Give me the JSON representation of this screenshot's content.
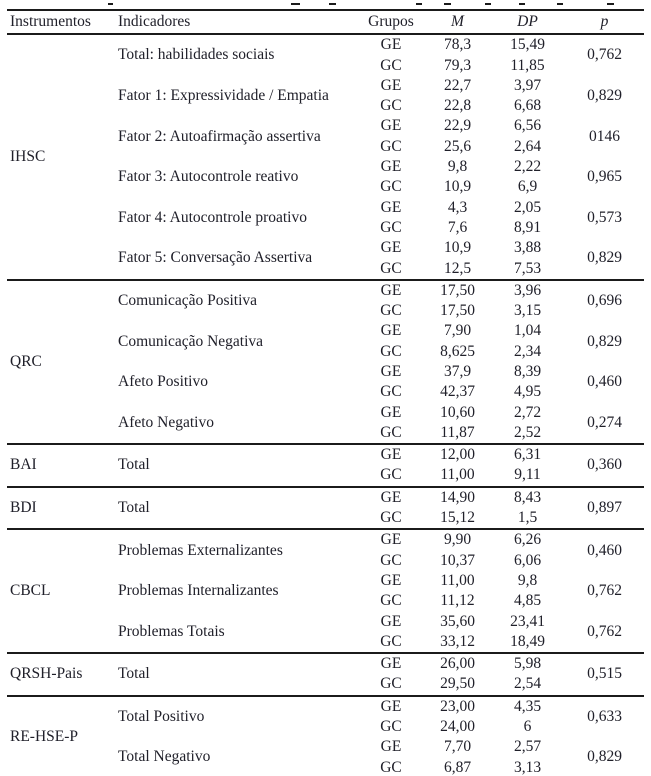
{
  "page": {
    "background": "#ffffff",
    "text_color": "#20202a",
    "rule_color": "#1b1b1b"
  },
  "table": {
    "headers": {
      "instrumentos": "Instrumentos",
      "indicadores": "Indicadores",
      "grupos": "Grupos",
      "m": "M",
      "dp": "DP",
      "p": "p"
    },
    "sections": [
      {
        "instrument": "IHSC",
        "indicators": [
          {
            "label": "Total: habilidades sociais",
            "groups": [
              {
                "group": "GE",
                "m": "78,3",
                "dp": "15,49"
              },
              {
                "group": "GC",
                "m": "79,3",
                "dp": "11,85"
              }
            ],
            "p": "0,762"
          },
          {
            "label": "Fator 1: Expressividade / Empatia",
            "groups": [
              {
                "group": "GE",
                "m": "22,7",
                "dp": "3,97"
              },
              {
                "group": "GC",
                "m": "22,8",
                "dp": "6,68"
              }
            ],
            "p": "0,829"
          },
          {
            "label": "Fator 2: Autoafirmação assertiva",
            "groups": [
              {
                "group": "GE",
                "m": "22,9",
                "dp": "6,56"
              },
              {
                "group": "GC",
                "m": "25,6",
                "dp": "2,64"
              }
            ],
            "p": "0146"
          },
          {
            "label": "Fator 3: Autocontrole reativo",
            "groups": [
              {
                "group": "GE",
                "m": "9,8",
                "dp": "2,22"
              },
              {
                "group": "GC",
                "m": "10,9",
                "dp": "6,9"
              }
            ],
            "p": "0,965"
          },
          {
            "label": "Fator 4: Autocontrole proativo",
            "groups": [
              {
                "group": "GE",
                "m": "4,3",
                "dp": "2,05"
              },
              {
                "group": "GC",
                "m": "7,6",
                "dp": "8,91"
              }
            ],
            "p": "0,573"
          },
          {
            "label": "Fator 5: Conversação Assertiva",
            "groups": [
              {
                "group": "GE",
                "m": "10,9",
                "dp": "3,88"
              },
              {
                "group": "GC",
                "m": "12,5",
                "dp": "7,53"
              }
            ],
            "p": "0,829"
          }
        ]
      },
      {
        "instrument": "QRC",
        "indicators": [
          {
            "label": "Comunicação Positiva",
            "groups": [
              {
                "group": "GE",
                "m": "17,50",
                "dp": "3,96"
              },
              {
                "group": "GC",
                "m": "17,50",
                "dp": "3,15"
              }
            ],
            "p": "0,696"
          },
          {
            "label": "Comunicação Negativa",
            "groups": [
              {
                "group": "GE",
                "m": "7,90",
                "dp": "1,04"
              },
              {
                "group": "GC",
                "m": "8,625",
                "dp": "2,34"
              }
            ],
            "p": "0,829"
          },
          {
            "label": "Afeto Positivo",
            "groups": [
              {
                "group": "GE",
                "m": "37,9",
                "dp": "8,39"
              },
              {
                "group": "GC",
                "m": "42,37",
                "dp": "4,95"
              }
            ],
            "p": "0,460"
          },
          {
            "label": "Afeto Negativo",
            "groups": [
              {
                "group": "GE",
                "m": "10,60",
                "dp": "2,72"
              },
              {
                "group": "GC",
                "m": "11,87",
                "dp": "2,52"
              }
            ],
            "p": "0,274"
          }
        ]
      },
      {
        "instrument": "BAI",
        "indicators": [
          {
            "label": "Total",
            "groups": [
              {
                "group": "GE",
                "m": "12,00",
                "dp": "6,31"
              },
              {
                "group": "GC",
                "m": "11,00",
                "dp": "9,11"
              }
            ],
            "p": "0,360"
          }
        ]
      },
      {
        "instrument": "BDI",
        "indicators": [
          {
            "label": "Total",
            "groups": [
              {
                "group": "GE",
                "m": "14,90",
                "dp": "8,43"
              },
              {
                "group": "GC",
                "m": "15,12",
                "dp": "1,5"
              }
            ],
            "p": "0,897"
          }
        ]
      },
      {
        "instrument": "CBCL",
        "indicators": [
          {
            "label": "Problemas Externalizantes",
            "groups": [
              {
                "group": "GE",
                "m": "9,90",
                "dp": "6,26"
              },
              {
                "group": "GC",
                "m": "10,37",
                "dp": "6,06"
              }
            ],
            "p": "0,460"
          },
          {
            "label": "Problemas Internalizantes",
            "groups": [
              {
                "group": "GE",
                "m": "11,00",
                "dp": "9,8"
              },
              {
                "group": "GC",
                "m": "11,12",
                "dp": "4,85"
              }
            ],
            "p": "0,762"
          },
          {
            "label": "Problemas Totais",
            "groups": [
              {
                "group": "GE",
                "m": "35,60",
                "dp": "23,41"
              },
              {
                "group": "GC",
                "m": "33,12",
                "dp": "18,49"
              }
            ],
            "p": "0,762"
          }
        ]
      },
      {
        "instrument": "QRSH-Pais",
        "indicators": [
          {
            "label": "Total",
            "groups": [
              {
                "group": "GE",
                "m": "26,00",
                "dp": "5,98"
              },
              {
                "group": "GC",
                "m": "29,50",
                "dp": "2,54"
              }
            ],
            "p": "0,515"
          }
        ]
      },
      {
        "instrument": "RE-HSE-P",
        "indicators": [
          {
            "label": "Total Positivo",
            "groups": [
              {
                "group": "GE",
                "m": "23,00",
                "dp": "4,35"
              },
              {
                "group": "GC",
                "m": "24,00",
                "dp": "6"
              }
            ],
            "p": "0,633"
          },
          {
            "label": "Total Negativo",
            "groups": [
              {
                "group": "GE",
                "m": "7,70",
                "dp": "2,57"
              },
              {
                "group": "GC",
                "m": "6,87",
                "dp": "3,13"
              }
            ],
            "p": "0,829"
          }
        ]
      }
    ]
  }
}
